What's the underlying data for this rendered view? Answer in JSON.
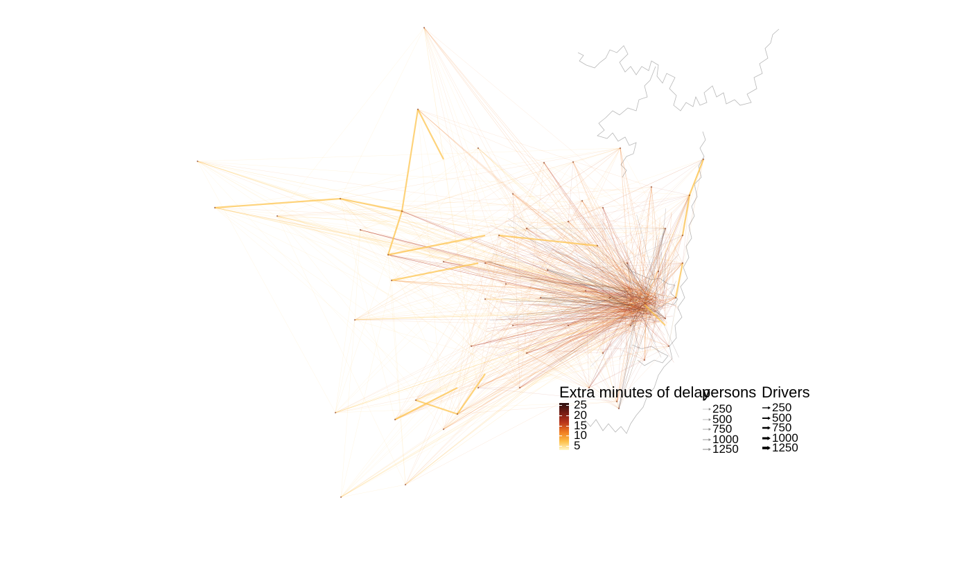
{
  "map": {
    "node_count": 60,
    "colors": {
      "coast": "#b7b7b7",
      "low_delay": "#fec44f",
      "mid_delay": "#f07c22",
      "high_delay": "#b5321a",
      "max_delay": "#2b0f0e"
    }
  },
  "legend_delay": {
    "title": "Extra minutes of delay",
    "ticks": [
      {
        "label": "25",
        "value": 25
      },
      {
        "label": "20",
        "value": 20
      },
      {
        "label": "15",
        "value": 15
      },
      {
        "label": "10",
        "value": 10
      },
      {
        "label": "5",
        "value": 5
      }
    ],
    "range": [
      3,
      26
    ]
  },
  "legend_persons": {
    "title": "persons",
    "items": [
      {
        "label": "250",
        "value": 250
      },
      {
        "label": "500",
        "value": 500
      },
      {
        "label": "750",
        "value": 750
      },
      {
        "label": "1000",
        "value": 1000
      },
      {
        "label": "1250",
        "value": 1250
      }
    ]
  },
  "legend_drivers": {
    "title": "Drivers",
    "items": [
      {
        "label": "250",
        "value": 250
      },
      {
        "label": "500",
        "value": 500
      },
      {
        "label": "750",
        "value": 750
      },
      {
        "label": "1000",
        "value": 1000
      },
      {
        "label": "1250",
        "value": 1250
      }
    ]
  }
}
